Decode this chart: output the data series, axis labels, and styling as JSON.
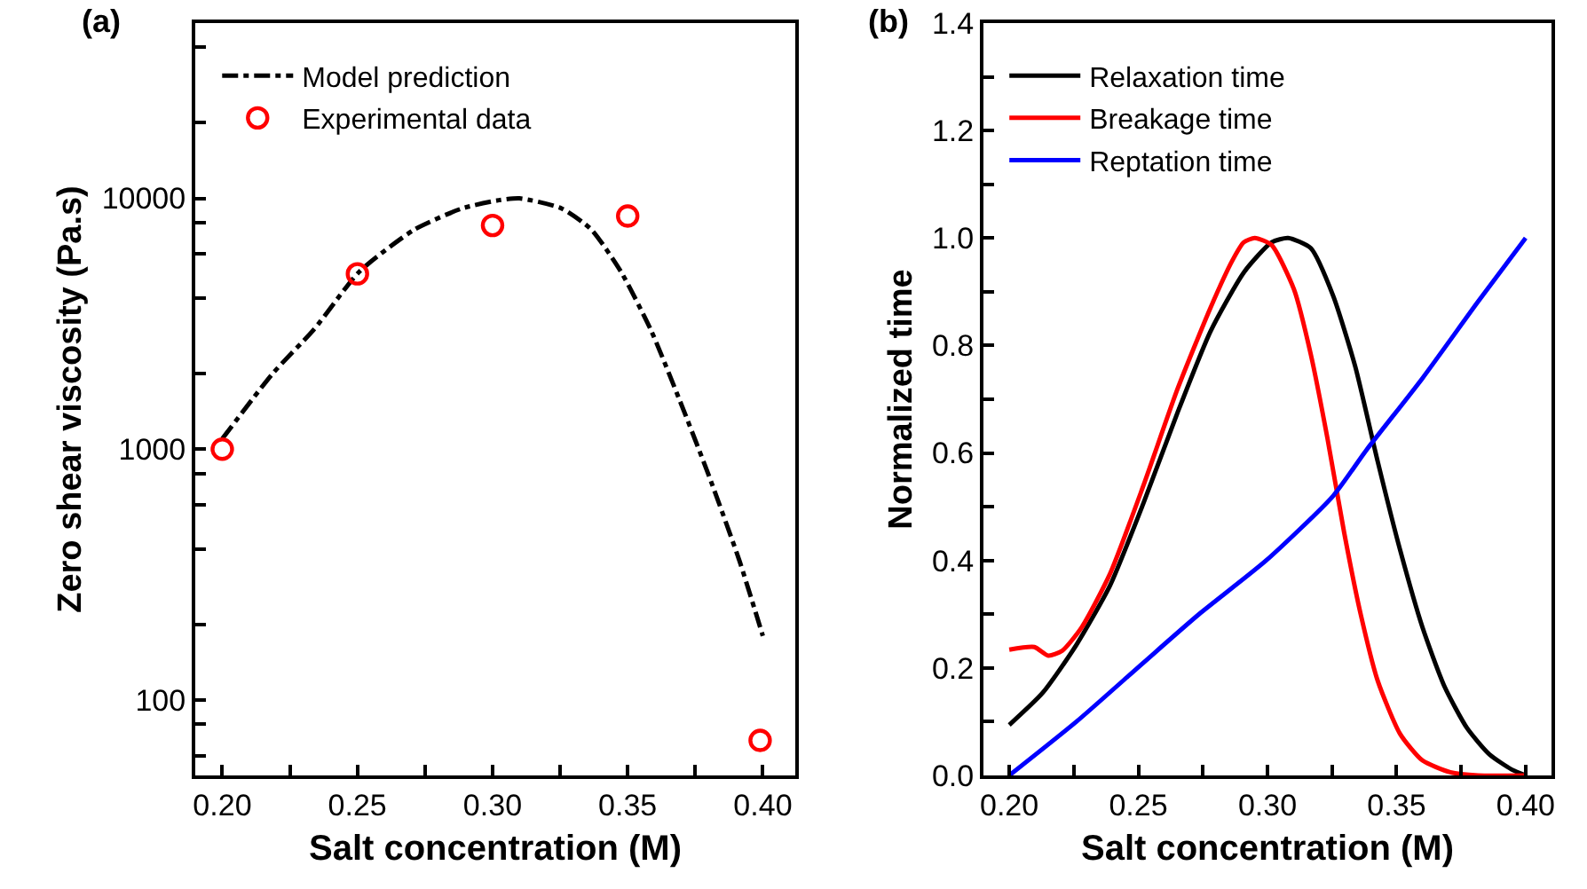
{
  "chart_data": [
    {
      "type": "line",
      "title": "(a)",
      "xlabel": "Salt concentration (M)",
      "ylabel": "Zero shear viscosity (Pa.s)",
      "log": "y",
      "grid": false,
      "legend": "top left",
      "xlim": [
        0.19,
        0.412
      ],
      "ylim": [
        50,
        50000
      ],
      "xticks": [
        {
          "value": 0.2,
          "label": "0.20"
        },
        {
          "value": 0.225,
          "label": null
        },
        {
          "value": 0.25,
          "label": "0.25"
        },
        {
          "value": 0.275,
          "label": null
        },
        {
          "value": 0.3,
          "label": "0.30"
        },
        {
          "value": 0.325,
          "label": null
        },
        {
          "value": 0.35,
          "label": "0.35"
        },
        {
          "value": 0.375,
          "label": null
        },
        {
          "value": 0.4,
          "label": "0.40"
        }
      ],
      "yticks": [
        {
          "value": 60,
          "label": null
        },
        {
          "value": 80,
          "label": null
        },
        100,
        {
          "value": 200,
          "label": null
        },
        {
          "value": 400,
          "label": null
        },
        {
          "value": 600,
          "label": null
        },
        {
          "value": 800,
          "label": null
        },
        1000,
        {
          "value": 2000,
          "label": null
        },
        {
          "value": 4000,
          "label": null
        },
        {
          "value": 6000,
          "label": null
        },
        {
          "value": 8000,
          "label": null
        },
        10000,
        {
          "value": 20000,
          "label": null
        },
        {
          "value": 40000,
          "label": null
        }
      ],
      "series": [
        {
          "name": "Model prediction",
          "type": "line",
          "color": "#000000",
          "line_style": "dashdot",
          "marker": "none",
          "x": [
            0.2,
            0.2186,
            0.2339,
            0.2507,
            0.271,
            0.2885,
            0.3016,
            0.31,
            0.3257,
            0.3366,
            0.3475,
            0.3585,
            0.3694,
            0.3803,
            0.3913,
            0.4
          ],
          "values": [
            1100,
            2000,
            3000,
            5100,
            7500,
            9100,
            9800,
            10000,
            9100,
            7500,
            5100,
            3000,
            1550,
            770,
            360,
            180
          ]
        },
        {
          "name": "Experimental data",
          "type": "scatter",
          "color": "#ff0000",
          "marker": "circle",
          "x": [
            0.2,
            0.25,
            0.3,
            0.35,
            0.399
          ],
          "values": [
            1000,
            5000,
            7800,
            8500,
            69
          ]
        }
      ]
    },
    {
      "type": "line",
      "title": "(b)",
      "xlabel": "Salt concentration (M)",
      "ylabel": "Normalized time",
      "grid": false,
      "legend": "top left",
      "xlim": [
        0.19,
        0.41
      ],
      "ylim": [
        0,
        1.4
      ],
      "xticks": [
        {
          "value": 0.2,
          "label": "0.20"
        },
        {
          "value": 0.225,
          "label": null
        },
        {
          "value": 0.25,
          "label": "0.25"
        },
        {
          "value": 0.275,
          "label": null
        },
        {
          "value": 0.3,
          "label": "0.30"
        },
        {
          "value": 0.325,
          "label": null
        },
        {
          "value": 0.35,
          "label": "0.35"
        },
        {
          "value": 0.375,
          "label": null
        },
        {
          "value": 0.4,
          "label": "0.40"
        }
      ],
      "yticks": [
        {
          "value": 0,
          "label": "0.0"
        },
        {
          "value": 0.1,
          "label": null
        },
        0.2,
        {
          "value": 0.3,
          "label": null
        },
        0.4,
        {
          "value": 0.5,
          "label": null
        },
        0.6,
        {
          "value": 0.7,
          "label": null
        },
        0.8,
        {
          "value": 0.9,
          "label": null
        },
        {
          "value": 1,
          "label": "1.0"
        },
        {
          "value": 1.1,
          "label": null
        },
        1.2,
        {
          "value": 1.3,
          "label": null
        },
        1.4
      ],
      "line_style": "solid",
      "marker": "none",
      "series": [
        {
          "name": "Relaxation time",
          "color": "#000000",
          "x": [
            0.2,
            0.213,
            0.226,
            0.239,
            0.252,
            0.265,
            0.278,
            0.291,
            0.3016,
            0.308,
            0.3168,
            0.3254,
            0.334,
            0.3427,
            0.3514,
            0.36,
            0.3686,
            0.3773,
            0.386,
            0.3946,
            0.4
          ],
          "values": [
            0.094,
            0.154,
            0.243,
            0.353,
            0.507,
            0.673,
            0.827,
            0.937,
            0.992,
            1.0,
            0.981,
            0.893,
            0.761,
            0.584,
            0.419,
            0.276,
            0.165,
            0.088,
            0.039,
            0.011,
            0.0
          ]
        },
        {
          "name": "Breakage time",
          "color": "#ff0000",
          "x": [
            0.2,
            0.2097,
            0.2151,
            0.2205,
            0.2281,
            0.239,
            0.252,
            0.265,
            0.278,
            0.2865,
            0.2908,
            0.2951,
            0.3016,
            0.3103,
            0.3168,
            0.3232,
            0.3297,
            0.3362,
            0.3427,
            0.3514,
            0.36,
            0.3708,
            0.3816,
            0.4
          ],
          "values": [
            0.234,
            0.239,
            0.223,
            0.232,
            0.276,
            0.375,
            0.54,
            0.717,
            0.871,
            0.959,
            0.992,
            1.0,
            0.987,
            0.904,
            0.783,
            0.628,
            0.452,
            0.298,
            0.176,
            0.077,
            0.028,
            0.006,
            0.0,
            0.0
          ]
        },
        {
          "name": "Reptation time",
          "color": "#0000ff",
          "x": [
            0.2,
            0.226,
            0.252,
            0.2735,
            0.2995,
            0.3254,
            0.3384,
            0.36,
            0.3816,
            0.4
          ],
          "values": [
            0.0,
            0.1,
            0.21,
            0.3,
            0.4,
            0.52,
            0.606,
            0.739,
            0.882,
            1.0
          ]
        }
      ]
    }
  ]
}
